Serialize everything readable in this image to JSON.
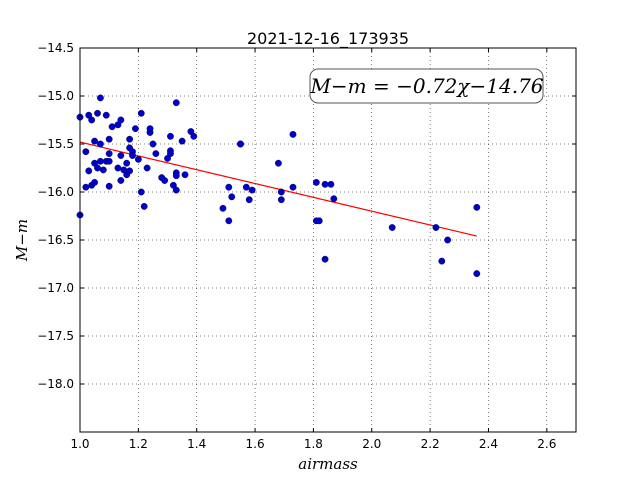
{
  "chart_data": {
    "type": "scatter",
    "title": "2021-12-16_173935",
    "xlabel": "airmass",
    "ylabel": "M−m",
    "xlim": [
      1.0,
      2.7
    ],
    "ylim": [
      -14.5,
      -18.5
    ],
    "xticks": [
      1.0,
      1.2,
      1.4,
      1.6,
      1.8,
      2.0,
      2.2,
      2.4,
      2.6
    ],
    "xtick_labels": [
      "1.0",
      "1.2",
      "1.4",
      "1.6",
      "1.8",
      "2.0",
      "2.2",
      "2.4",
      "2.6"
    ],
    "yticks": [
      -14.5,
      -15.0,
      -15.5,
      -16.0,
      -16.5,
      -17.0,
      -17.5,
      -18.0
    ],
    "ytick_labels": [
      "−14.5",
      "−15.0",
      "−15.5",
      "−16.0",
      "−16.5",
      "−17.0",
      "−17.5",
      "−18.0"
    ],
    "grid": true,
    "annotation": "M−m = −0.72χ−14.76",
    "colors": {
      "points": "#0000cc",
      "fit_line": "#ff0000"
    },
    "fit": {
      "slope": -0.72,
      "intercept": -14.76,
      "x_range": [
        1.0,
        2.36
      ]
    },
    "points": [
      [
        1.0,
        -15.22
      ],
      [
        1.0,
        -16.24
      ],
      [
        1.02,
        -15.58
      ],
      [
        1.02,
        -15.95
      ],
      [
        1.03,
        -15.2
      ],
      [
        1.03,
        -15.78
      ],
      [
        1.04,
        -15.93
      ],
      [
        1.04,
        -15.25
      ],
      [
        1.05,
        -15.47
      ],
      [
        1.05,
        -15.7
      ],
      [
        1.05,
        -15.9
      ],
      [
        1.06,
        -15.18
      ],
      [
        1.06,
        -15.75
      ],
      [
        1.07,
        -15.02
      ],
      [
        1.07,
        -15.5
      ],
      [
        1.07,
        -15.68
      ],
      [
        1.08,
        -15.77
      ],
      [
        1.09,
        -15.68
      ],
      [
        1.09,
        -15.2
      ],
      [
        1.1,
        -15.45
      ],
      [
        1.1,
        -15.94
      ],
      [
        1.1,
        -15.6
      ],
      [
        1.1,
        -15.68
      ],
      [
        1.11,
        -15.32
      ],
      [
        1.13,
        -15.3
      ],
      [
        1.13,
        -15.75
      ],
      [
        1.14,
        -15.25
      ],
      [
        1.14,
        -15.88
      ],
      [
        1.14,
        -15.62
      ],
      [
        1.15,
        -15.77
      ],
      [
        1.16,
        -15.7
      ],
      [
        1.16,
        -15.82
      ],
      [
        1.17,
        -15.78
      ],
      [
        1.17,
        -15.45
      ],
      [
        1.17,
        -15.54
      ],
      [
        1.18,
        -15.58
      ],
      [
        1.18,
        -15.62
      ],
      [
        1.19,
        -15.34
      ],
      [
        1.2,
        -15.66
      ],
      [
        1.21,
        -15.18
      ],
      [
        1.21,
        -16.0
      ],
      [
        1.22,
        -16.15
      ],
      [
        1.23,
        -15.75
      ],
      [
        1.24,
        -15.34
      ],
      [
        1.24,
        -15.38
      ],
      [
        1.25,
        -15.5
      ],
      [
        1.26,
        -15.6
      ],
      [
        1.28,
        -15.85
      ],
      [
        1.29,
        -15.88
      ],
      [
        1.3,
        -15.65
      ],
      [
        1.31,
        -15.42
      ],
      [
        1.31,
        -15.57
      ],
      [
        1.31,
        -15.6
      ],
      [
        1.32,
        -15.93
      ],
      [
        1.33,
        -15.8
      ],
      [
        1.33,
        -15.83
      ],
      [
        1.33,
        -15.98
      ],
      [
        1.33,
        -15.07
      ],
      [
        1.35,
        -15.47
      ],
      [
        1.36,
        -15.82
      ],
      [
        1.38,
        -15.37
      ],
      [
        1.39,
        -15.42
      ],
      [
        1.49,
        -16.17
      ],
      [
        1.51,
        -16.3
      ],
      [
        1.51,
        -15.95
      ],
      [
        1.52,
        -16.05
      ],
      [
        1.55,
        -15.5
      ],
      [
        1.55,
        -15.5
      ],
      [
        1.57,
        -15.95
      ],
      [
        1.58,
        -16.08
      ],
      [
        1.59,
        -15.98
      ],
      [
        1.68,
        -15.7
      ],
      [
        1.69,
        -16.08
      ],
      [
        1.69,
        -16.0
      ],
      [
        1.73,
        -15.95
      ],
      [
        1.73,
        -15.4
      ],
      [
        1.81,
        -16.3
      ],
      [
        1.81,
        -15.9
      ],
      [
        1.82,
        -16.3
      ],
      [
        1.84,
        -15.92
      ],
      [
        1.84,
        -16.7
      ],
      [
        1.86,
        -15.92
      ],
      [
        1.87,
        -16.07
      ],
      [
        2.07,
        -16.37
      ],
      [
        2.22,
        -16.37
      ],
      [
        2.24,
        -16.72
      ],
      [
        2.26,
        -16.5
      ],
      [
        2.36,
        -16.16
      ],
      [
        2.36,
        -16.85
      ]
    ]
  }
}
